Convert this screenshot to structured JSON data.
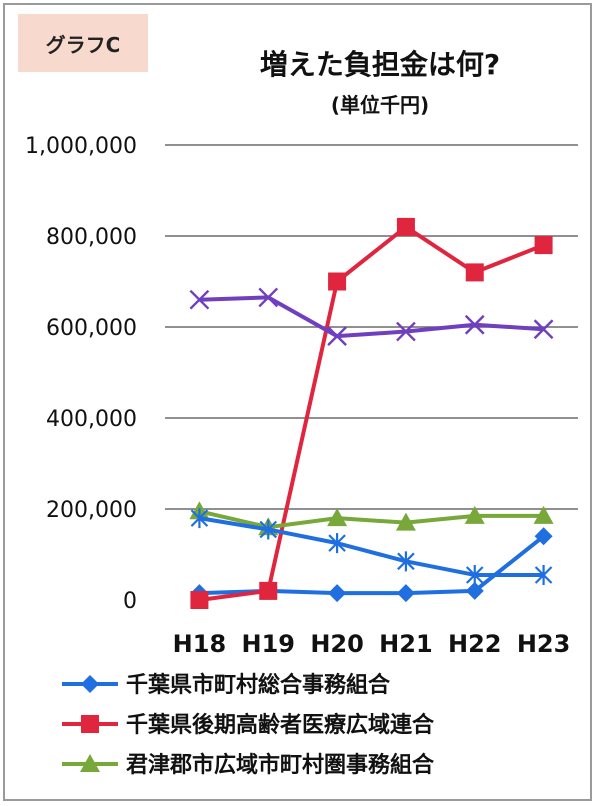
{
  "graph_tag": "グラフC",
  "chart_data": {
    "type": "line",
    "title": "増えた負担金は何?",
    "subtitle": "(単位千円)",
    "categories": [
      "H18",
      "H19",
      "H20",
      "H21",
      "H22",
      "H23"
    ],
    "y_ticks": [
      "0",
      "200,000",
      "400,000",
      "600,000",
      "800,000",
      "1,000,000"
    ],
    "ylim": [
      0,
      1000000
    ],
    "grid": true,
    "legend_position": "bottom",
    "series": [
      {
        "name": "千葉県市町村総合事務組合",
        "color": "#1f6fe0",
        "marker": "diamond",
        "values": [
          15000,
          20000,
          15000,
          15000,
          20000,
          140000
        ]
      },
      {
        "name": "千葉県後期高齢者医療広域連合",
        "color": "#e0253f",
        "marker": "square",
        "values": [
          0,
          20000,
          700000,
          820000,
          720000,
          780000
        ]
      },
      {
        "name": "君津郡市広域市町村圏事務組合",
        "color": "#78a83a",
        "marker": "triangle",
        "values": [
          195000,
          160000,
          180000,
          170000,
          185000,
          185000
        ]
      },
      {
        "name": "",
        "color": "#1f6fe0",
        "marker": "asterisk",
        "values": [
          180000,
          155000,
          125000,
          85000,
          55000,
          55000
        ]
      },
      {
        "name": "",
        "color": "#6f3fbf",
        "marker": "cross",
        "values": [
          660000,
          665000,
          580000,
          590000,
          605000,
          595000
        ]
      }
    ]
  }
}
